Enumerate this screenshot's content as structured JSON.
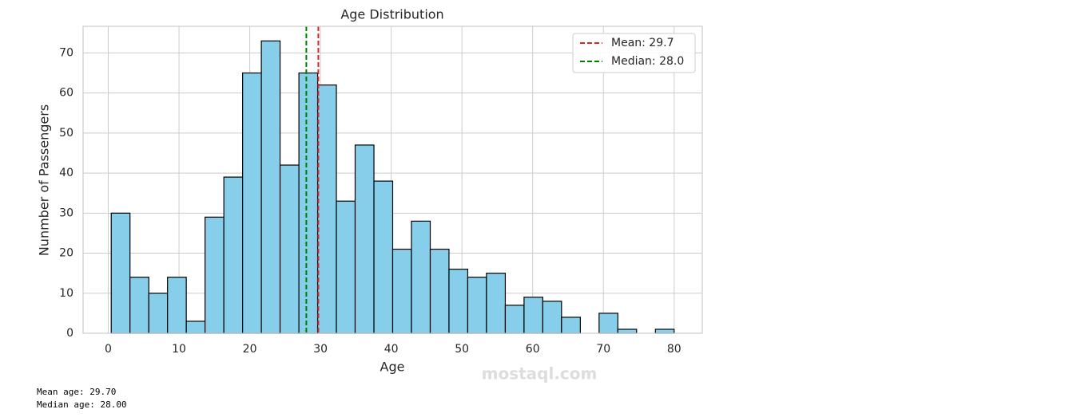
{
  "chart_data": {
    "type": "histogram",
    "title": "Age Distribution",
    "x_label": "Age",
    "y_label": "Nunmber of Passengers",
    "bins": [
      0.42,
      3.07,
      5.73,
      8.38,
      11.03,
      13.68,
      16.34,
      18.99,
      21.64,
      24.29,
      26.95,
      29.6,
      32.25,
      34.9,
      37.56,
      40.21,
      42.86,
      45.52,
      48.17,
      50.82,
      53.47,
      56.13,
      58.78,
      61.43,
      64.08,
      66.74,
      69.39,
      72.04,
      74.69,
      77.35,
      80
    ],
    "values": [
      30,
      14,
      10,
      14,
      3,
      29,
      39,
      65,
      73,
      42,
      65,
      62,
      33,
      47,
      38,
      21,
      28,
      21,
      16,
      14,
      15,
      7,
      9,
      8,
      4,
      0,
      5,
      1,
      0,
      1
    ],
    "color": "#87ceeb",
    "edge_color": "#000000",
    "lines": [
      {
        "name": "Mean: 29.7",
        "value": 29.7,
        "color": "#d62728"
      },
      {
        "name": "Median: 28.0",
        "value": 28.0,
        "color": "#008000"
      }
    ],
    "xlim": [
      -3.56,
      83.98
    ],
    "xticks": [
      0,
      10,
      20,
      30,
      40,
      50,
      60,
      70,
      80
    ],
    "ylim": [
      0,
      76.65
    ],
    "yticks": [
      0,
      10,
      20,
      30,
      40,
      50,
      60,
      70
    ],
    "grid": true,
    "legend": "upper right"
  },
  "output": [
    "Mean age: 29.70",
    "Median age: 28.00"
  ],
  "watermark": "mostaql.com"
}
